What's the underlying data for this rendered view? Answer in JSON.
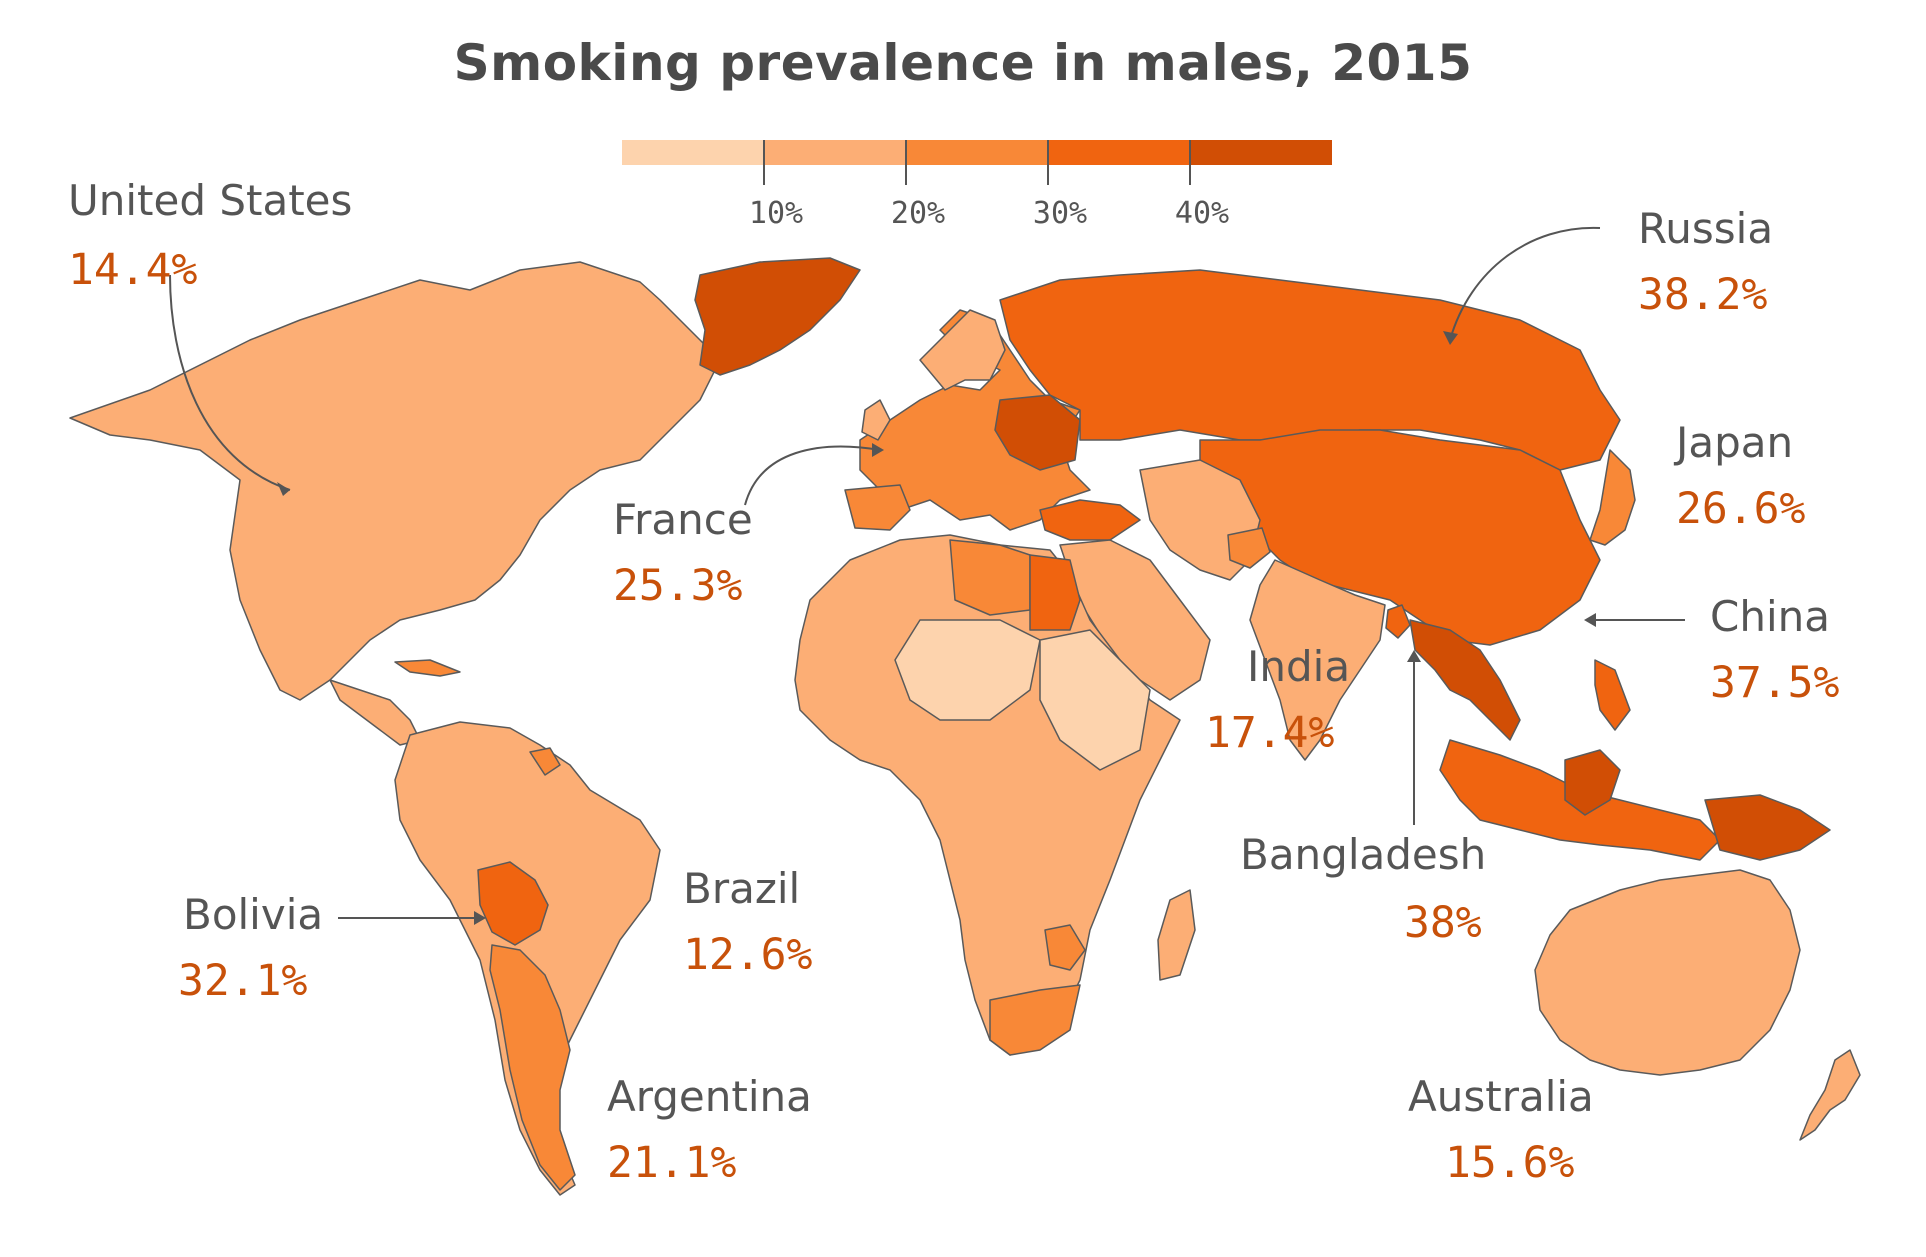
{
  "title": "Smoking prevalence in males, 2015",
  "legend": {
    "tick_labels": [
      "10%",
      "20%",
      "30%",
      "40%"
    ],
    "colors": [
      "#fdd3ad",
      "#fcae75",
      "#f88837",
      "#f06410",
      "#d14e05"
    ]
  },
  "colors": {
    "bin1": "#fdd3ad",
    "bin2": "#fcae75",
    "bin3": "#f88837",
    "bin4": "#f06410",
    "bin5": "#d14e05",
    "border": "#5a5a5a",
    "ocean": "#ffffff",
    "label_name": "#555555",
    "label_value": "#c8510a"
  },
  "callouts": [
    {
      "id": "united-states",
      "name": "United States",
      "value": "14.4%"
    },
    {
      "id": "russia",
      "name": "Russia",
      "value": "38.2%"
    },
    {
      "id": "japan",
      "name": "Japan",
      "value": "26.6%"
    },
    {
      "id": "france",
      "name": "France",
      "value": "25.3%"
    },
    {
      "id": "china",
      "name": "China",
      "value": "37.5%"
    },
    {
      "id": "india",
      "name": "India",
      "value": "17.4%"
    },
    {
      "id": "bangladesh",
      "name": "Bangladesh",
      "value": "38%"
    },
    {
      "id": "bolivia",
      "name": "Bolivia",
      "value": "32.1%"
    },
    {
      "id": "brazil",
      "name": "Brazil",
      "value": "12.6%"
    },
    {
      "id": "argentina",
      "name": "Argentina",
      "value": "21.1%"
    },
    {
      "id": "australia",
      "name": "Australia",
      "value": "15.6%"
    }
  ]
}
